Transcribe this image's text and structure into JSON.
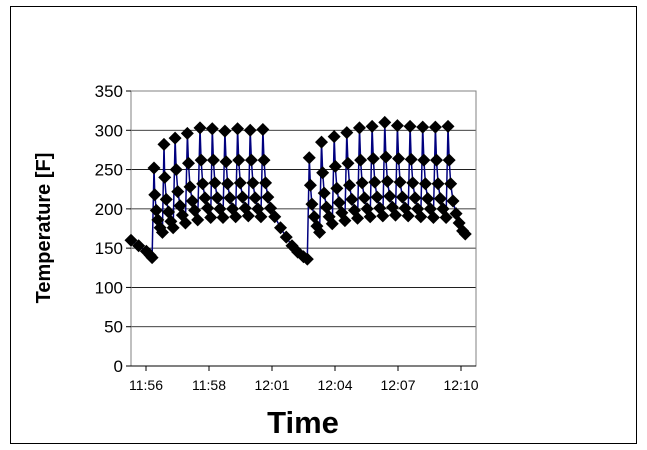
{
  "chart_data": {
    "type": "scatter",
    "title": "",
    "xlabel": "Time",
    "ylabel": "Temperature [F]",
    "ylim": [
      0,
      350
    ],
    "yticks": [
      0,
      50,
      100,
      150,
      200,
      250,
      300,
      350
    ],
    "xticks": [
      "11:56",
      "11:58",
      "12:01",
      "12:04",
      "12:07",
      "12:10"
    ],
    "xlim_minutes": [
      "11:56",
      "12:11"
    ],
    "grid": "horizontal",
    "legend": "none",
    "colors": {
      "line": "#00007f",
      "marker": "#000000",
      "plot_border": "#808080",
      "grid": "#000000"
    },
    "marker": "diamond",
    "series": [
      {
        "points": [
          [
            "11:56:00",
            160
          ],
          [
            "11:56:20",
            153
          ],
          [
            "11:56:40",
            146
          ],
          [
            "11:56:50",
            141
          ],
          [
            "11:56:55",
            138
          ],
          [
            "11:57:00",
            252
          ],
          [
            "11:57:02",
            218
          ],
          [
            "11:57:06",
            198
          ],
          [
            "11:57:10",
            186
          ],
          [
            "11:57:16",
            176
          ],
          [
            "11:57:22",
            170
          ],
          [
            "11:57:26",
            282
          ],
          [
            "11:57:28",
            240
          ],
          [
            "11:57:32",
            212
          ],
          [
            "11:57:38",
            196
          ],
          [
            "11:57:44",
            184
          ],
          [
            "11:57:50",
            176
          ],
          [
            "11:57:55",
            290
          ],
          [
            "11:57:58",
            250
          ],
          [
            "11:58:02",
            222
          ],
          [
            "11:58:08",
            204
          ],
          [
            "11:58:14",
            192
          ],
          [
            "11:58:22",
            182
          ],
          [
            "11:58:27",
            296
          ],
          [
            "11:58:30",
            258
          ],
          [
            "11:58:34",
            228
          ],
          [
            "11:58:40",
            210
          ],
          [
            "11:58:46",
            198
          ],
          [
            "11:58:54",
            186
          ],
          [
            "11:59:00",
            303
          ],
          [
            "11:59:03",
            262
          ],
          [
            "11:59:07",
            232
          ],
          [
            "11:59:13",
            214
          ],
          [
            "11:59:20",
            201
          ],
          [
            "11:59:28",
            189
          ],
          [
            "11:59:32",
            302
          ],
          [
            "11:59:35",
            262
          ],
          [
            "11:59:39",
            233
          ],
          [
            "11:59:45",
            214
          ],
          [
            "11:59:52",
            200
          ],
          [
            "12:00:00",
            189
          ],
          [
            "12:00:05",
            299
          ],
          [
            "12:00:08",
            260
          ],
          [
            "12:00:12",
            232
          ],
          [
            "12:00:18",
            214
          ],
          [
            "12:00:25",
            200
          ],
          [
            "12:00:33",
            190
          ],
          [
            "12:00:38",
            302
          ],
          [
            "12:00:41",
            262
          ],
          [
            "12:00:45",
            233
          ],
          [
            "12:00:51",
            215
          ],
          [
            "12:00:58",
            201
          ],
          [
            "12:01:06",
            191
          ],
          [
            "12:01:11",
            300
          ],
          [
            "12:01:14",
            262
          ],
          [
            "12:01:18",
            233
          ],
          [
            "12:01:24",
            214
          ],
          [
            "12:01:31",
            200
          ],
          [
            "12:01:39",
            190
          ],
          [
            "12:01:44",
            301
          ],
          [
            "12:01:47",
            262
          ],
          [
            "12:01:51",
            233
          ],
          [
            "12:01:57",
            215
          ],
          [
            "12:02:04",
            201
          ],
          [
            "12:02:15",
            190
          ],
          [
            "12:02:30",
            176
          ],
          [
            "12:02:45",
            164
          ],
          [
            "12:03:00",
            153
          ],
          [
            "12:03:15",
            145
          ],
          [
            "12:03:30",
            139
          ],
          [
            "12:03:40",
            136
          ],
          [
            "12:03:45",
            265
          ],
          [
            "12:03:48",
            230
          ],
          [
            "12:03:52",
            206
          ],
          [
            "12:03:58",
            190
          ],
          [
            "12:04:05",
            178
          ],
          [
            "12:04:12",
            170
          ],
          [
            "12:04:17",
            285
          ],
          [
            "12:04:20",
            246
          ],
          [
            "12:04:24",
            220
          ],
          [
            "12:04:30",
            202
          ],
          [
            "12:04:37",
            190
          ],
          [
            "12:04:45",
            181
          ],
          [
            "12:04:50",
            292
          ],
          [
            "12:04:53",
            254
          ],
          [
            "12:04:57",
            226
          ],
          [
            "12:05:03",
            208
          ],
          [
            "12:05:10",
            195
          ],
          [
            "12:05:18",
            185
          ],
          [
            "12:05:23",
            297
          ],
          [
            "12:05:26",
            258
          ],
          [
            "12:05:30",
            230
          ],
          [
            "12:05:36",
            212
          ],
          [
            "12:05:43",
            198
          ],
          [
            "12:05:51",
            188
          ],
          [
            "12:05:56",
            303
          ],
          [
            "12:05:59",
            262
          ],
          [
            "12:06:03",
            233
          ],
          [
            "12:06:09",
            214
          ],
          [
            "12:06:16",
            200
          ],
          [
            "12:06:24",
            190
          ],
          [
            "12:06:29",
            305
          ],
          [
            "12:06:32",
            264
          ],
          [
            "12:06:36",
            234
          ],
          [
            "12:06:42",
            215
          ],
          [
            "12:06:49",
            201
          ],
          [
            "12:06:57",
            191
          ],
          [
            "12:07:02",
            310
          ],
          [
            "12:07:05",
            266
          ],
          [
            "12:07:09",
            235
          ],
          [
            "12:07:15",
            216
          ],
          [
            "12:07:22",
            202
          ],
          [
            "12:07:30",
            192
          ],
          [
            "12:07:35",
            306
          ],
          [
            "12:07:38",
            264
          ],
          [
            "12:07:42",
            234
          ],
          [
            "12:07:48",
            215
          ],
          [
            "12:07:55",
            201
          ],
          [
            "12:08:03",
            191
          ],
          [
            "12:08:08",
            305
          ],
          [
            "12:08:11",
            263
          ],
          [
            "12:08:15",
            233
          ],
          [
            "12:08:21",
            214
          ],
          [
            "12:08:28",
            200
          ],
          [
            "12:08:36",
            190
          ],
          [
            "12:08:41",
            304
          ],
          [
            "12:08:44",
            262
          ],
          [
            "12:08:48",
            232
          ],
          [
            "12:08:54",
            213
          ],
          [
            "12:09:01",
            200
          ],
          [
            "12:09:09",
            189
          ],
          [
            "12:09:14",
            304
          ],
          [
            "12:09:17",
            262
          ],
          [
            "12:09:21",
            232
          ],
          [
            "12:09:27",
            213
          ],
          [
            "12:09:34",
            200
          ],
          [
            "12:09:42",
            189
          ],
          [
            "12:09:47",
            305
          ],
          [
            "12:09:50",
            262
          ],
          [
            "12:09:54",
            232
          ],
          [
            "12:10:00",
            210
          ],
          [
            "12:10:08",
            194
          ],
          [
            "12:10:16",
            182
          ],
          [
            "12:10:25",
            172
          ],
          [
            "12:10:32",
            168
          ]
        ]
      }
    ]
  }
}
